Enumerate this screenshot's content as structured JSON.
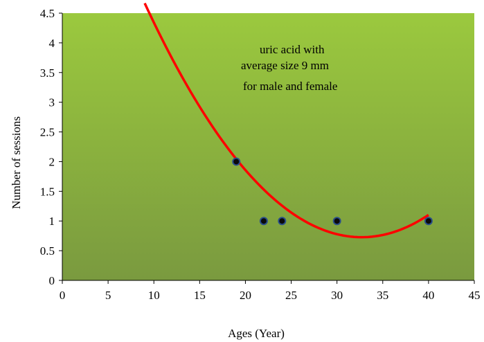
{
  "chart_data": {
    "type": "scatter",
    "xlabel": "Ages (Year)",
    "ylabel": "Number of sessions",
    "xlim": [
      0,
      45
    ],
    "ylim": [
      0,
      4.5
    ],
    "xticks": [
      "0",
      "5",
      "10",
      "15",
      "20",
      "25",
      "30",
      "35",
      "40",
      "45"
    ],
    "yticks": [
      "0",
      "0.5",
      "1",
      "1.5",
      "2",
      "2.5",
      "3",
      "3.5",
      "4",
      "4.5"
    ],
    "grid": false,
    "legend": "none",
    "points": [
      {
        "x": 19,
        "y": 2
      },
      {
        "x": 22,
        "y": 1
      },
      {
        "x": 24,
        "y": 1
      },
      {
        "x": 30,
        "y": 1
      },
      {
        "x": 40,
        "y": 1
      }
    ],
    "trendline": {
      "type": "polynomial-2",
      "coefficients": [
        8.23,
        -0.459,
        0.00702
      ],
      "x_range": [
        9,
        40
      ],
      "color": "#ff0000"
    },
    "annotation": [
      "uric acid with",
      "average size 9 mm",
      "for male and female"
    ],
    "colors": {
      "background_top": "#9bc93e",
      "background_bottom": "#7a9a3f",
      "marker_fill": "#0a0a0a",
      "marker_stroke": "#2a4e8a",
      "trendline": "#ff0000"
    }
  }
}
